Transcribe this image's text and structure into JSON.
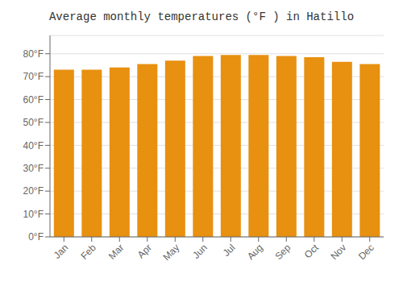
{
  "chart_data": {
    "type": "bar",
    "title": "Average monthly temperatures (°F ) in Hatillo",
    "categories": [
      "Jan",
      "Feb",
      "Mar",
      "Apr",
      "May",
      "Jun",
      "Jul",
      "Aug",
      "Sep",
      "Oct",
      "Nov",
      "Dec"
    ],
    "values": [
      73,
      73,
      74,
      75.5,
      77,
      79,
      79.5,
      79.5,
      79,
      78.5,
      76.5,
      75.5
    ],
    "color": "#E89010",
    "ylim": [
      0,
      88
    ],
    "yticks": [
      {
        "value": 0,
        "label": "0°F"
      },
      {
        "value": 10,
        "label": "10°F"
      },
      {
        "value": 20,
        "label": "20°F"
      },
      {
        "value": 30,
        "label": "30°F"
      },
      {
        "value": 40,
        "label": "40°F"
      },
      {
        "value": 50,
        "label": "50°F"
      },
      {
        "value": 60,
        "label": "60°F"
      },
      {
        "value": 70,
        "label": "70°F"
      },
      {
        "value": 80,
        "label": "80°F"
      }
    ],
    "grid": true
  }
}
